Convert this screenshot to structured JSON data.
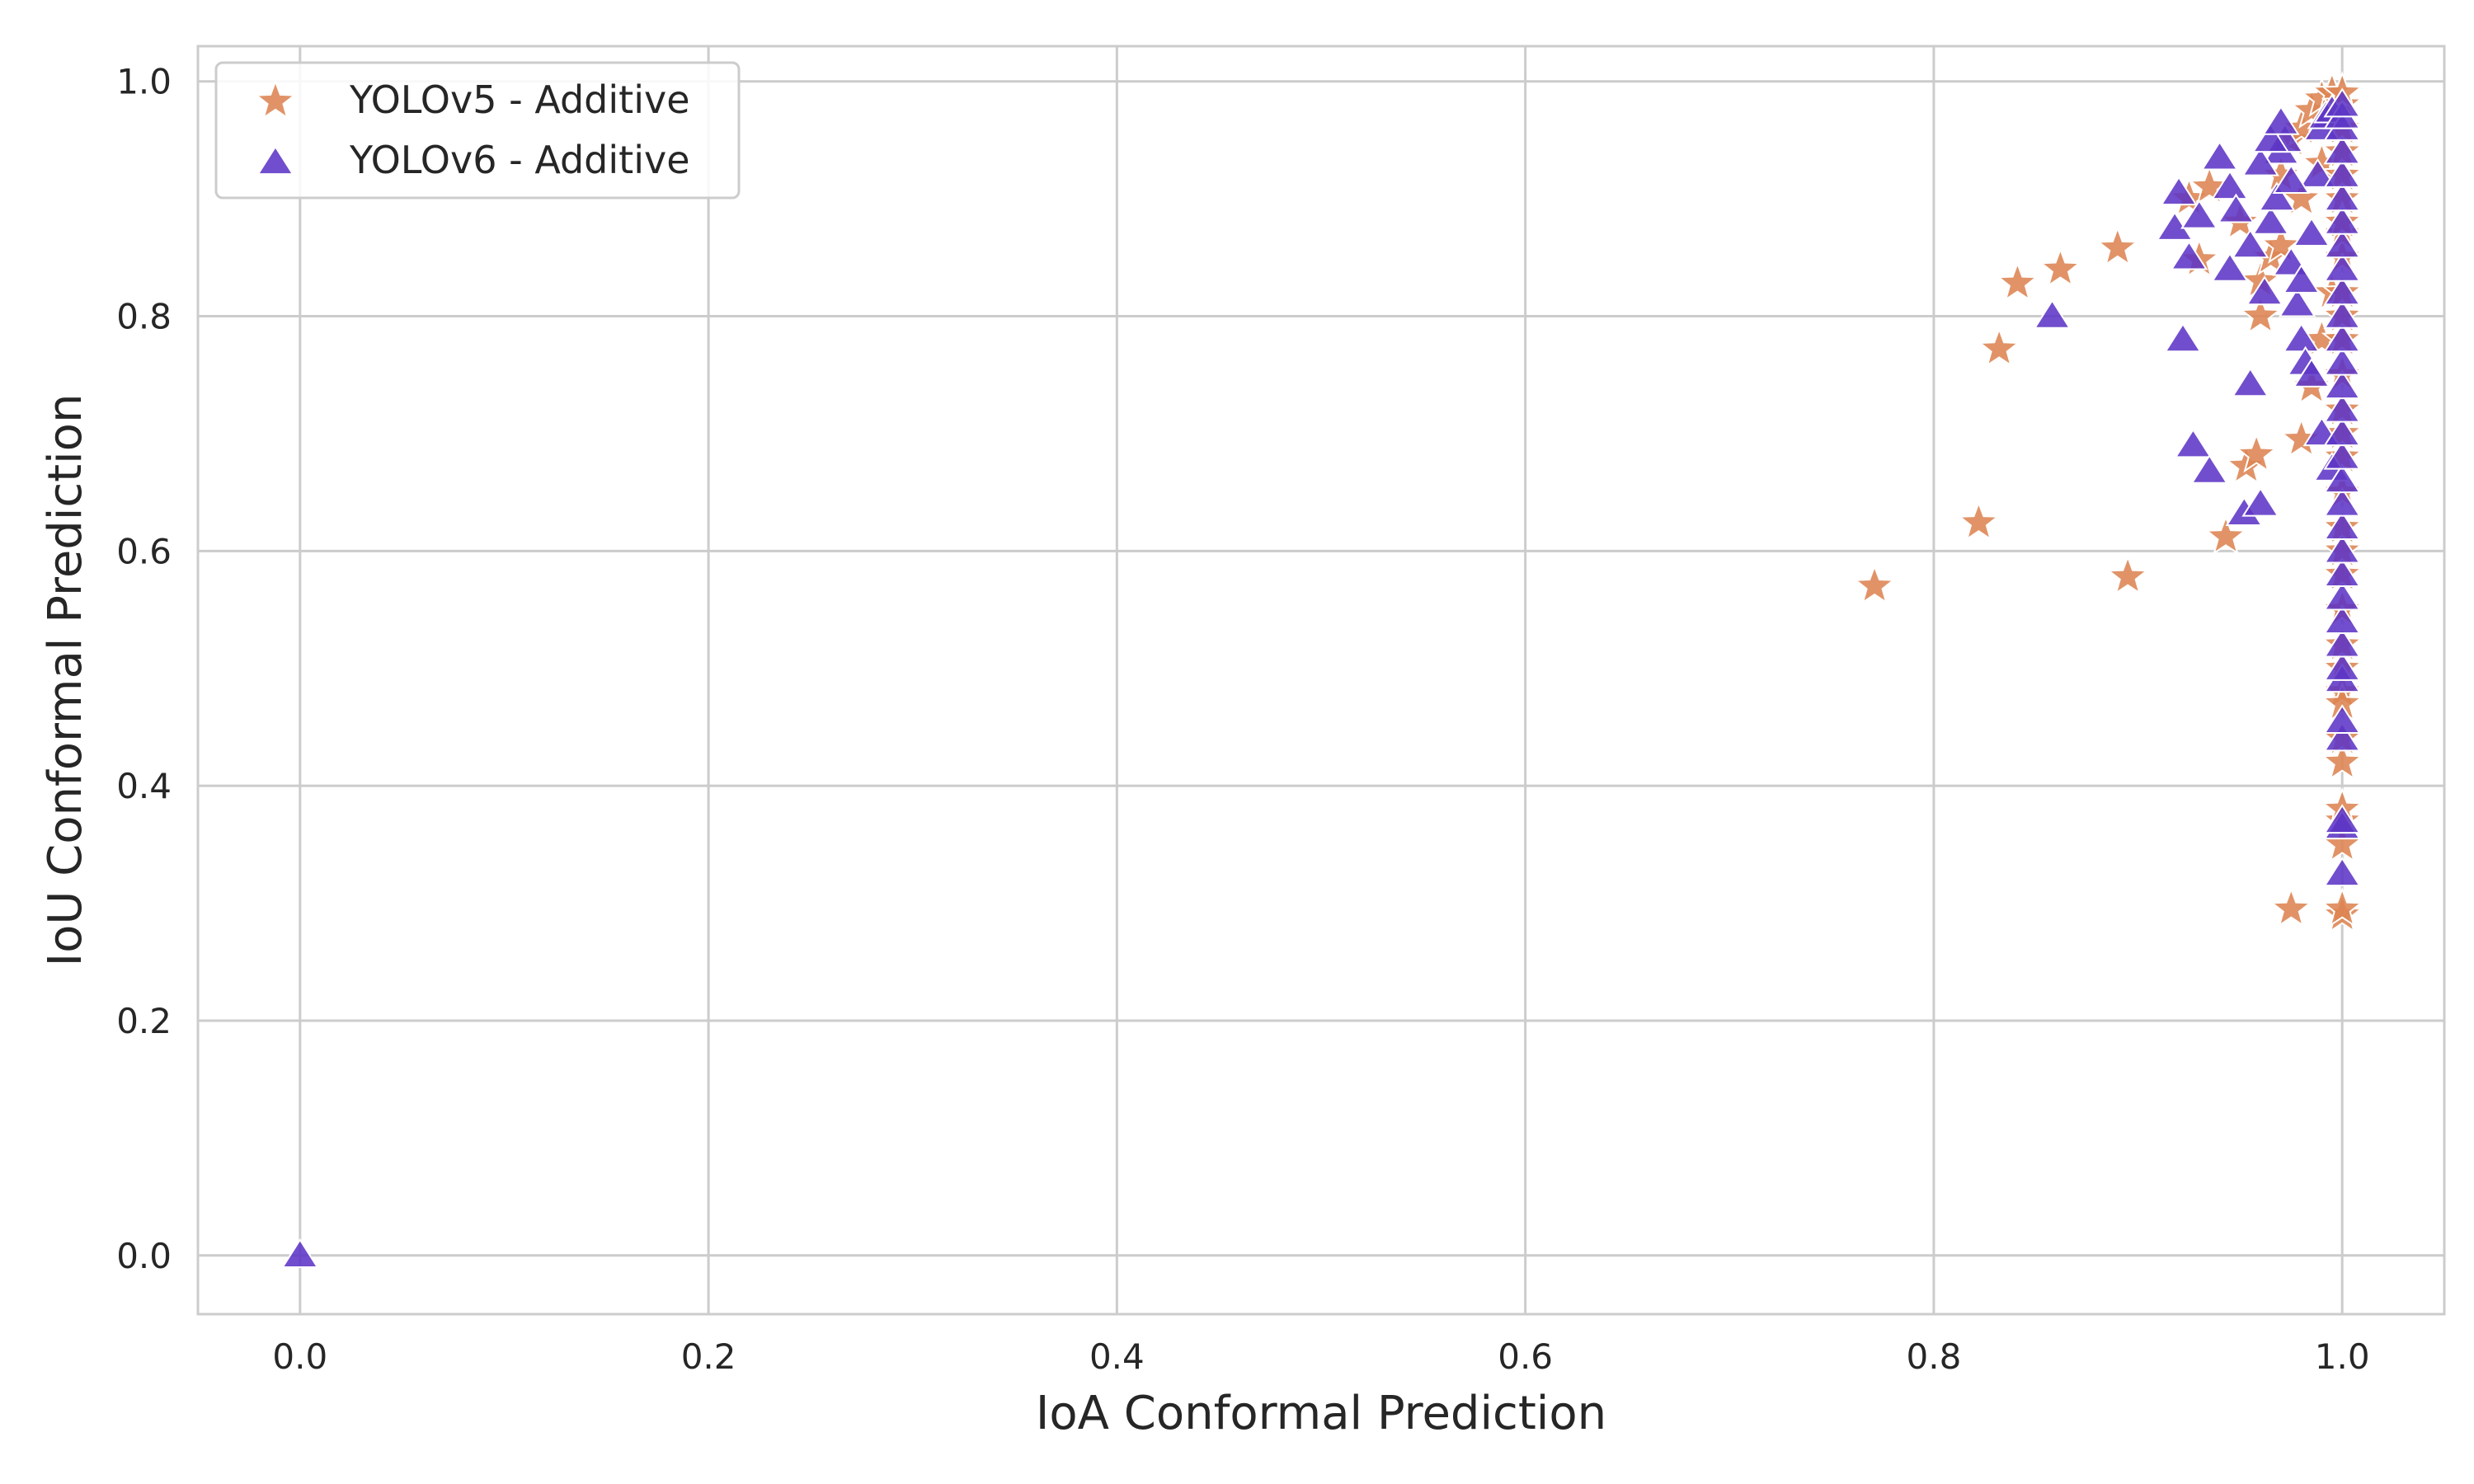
{
  "chart_data": {
    "type": "scatter",
    "xlabel": "IoA Conformal Prediction",
    "ylabel": "IoU Conformal Prediction",
    "xlim": [
      -0.05,
      1.05
    ],
    "ylim": [
      -0.05,
      1.03
    ],
    "x_ticks": [
      "0.0",
      "0.2",
      "0.4",
      "0.6",
      "0.8",
      "1.0"
    ],
    "y_ticks": [
      "0.0",
      "0.2",
      "0.4",
      "0.6",
      "0.8",
      "1.0"
    ],
    "grid": true,
    "legend_position": "top-left",
    "series": [
      {
        "name": "YOLOv5 - Additive",
        "marker": "star",
        "color": "#dd8452",
        "x": [
          0.771,
          0.822,
          0.832,
          0.841,
          0.862,
          0.89,
          0.895,
          0.925,
          0.93,
          0.935,
          0.943,
          0.953,
          0.958,
          0.96,
          0.965,
          0.97,
          0.975,
          0.98,
          0.985,
          0.99,
          0.995,
          0.975,
          0.98,
          0.985,
          0.99,
          0.995,
          0.95,
          0.96,
          0.97,
          0.98,
          0.99,
          1.0,
          1.0,
          1.0,
          1.0,
          1.0,
          1.0,
          1.0,
          1.0,
          1.0,
          1.0,
          1.0,
          1.0,
          1.0,
          1.0,
          1.0,
          1.0,
          1.0,
          1.0,
          1.0,
          1.0,
          1.0,
          1.0,
          1.0,
          1.0,
          1.0,
          1.0,
          1.0,
          1.0,
          1.0,
          1.0,
          1.0,
          1.0,
          1.0
        ],
        "y": [
          0.57,
          0.624,
          0.772,
          0.828,
          0.84,
          0.858,
          0.578,
          0.9,
          0.848,
          0.91,
          0.612,
          0.672,
          0.682,
          0.83,
          0.85,
          0.92,
          0.95,
          0.96,
          0.975,
          0.985,
          0.99,
          0.295,
          0.695,
          0.74,
          0.78,
          0.82,
          0.88,
          0.8,
          0.86,
          0.9,
          0.93,
          0.29,
          0.295,
          0.35,
          0.37,
          0.38,
          0.42,
          0.44,
          0.48,
          0.5,
          0.52,
          0.55,
          0.58,
          0.6,
          0.62,
          0.65,
          0.68,
          0.7,
          0.72,
          0.75,
          0.78,
          0.8,
          0.82,
          0.85,
          0.87,
          0.9,
          0.92,
          0.94,
          0.96,
          0.98,
          0.99,
          0.55,
          0.47,
          0.88
        ]
      },
      {
        "name": "YOLOv6 - Additive",
        "marker": "triangle",
        "color": "#5d36c6",
        "x": [
          0.0,
          0.858,
          0.918,
          0.92,
          0.922,
          0.927,
          0.935,
          0.94,
          0.945,
          0.948,
          0.952,
          0.955,
          0.96,
          0.962,
          0.965,
          0.968,
          0.97,
          0.972,
          0.975,
          0.978,
          0.98,
          0.982,
          0.985,
          0.988,
          0.99,
          0.992,
          0.995,
          0.955,
          0.96,
          0.965,
          0.97,
          0.975,
          0.98,
          0.985,
          0.99,
          0.995,
          1.0,
          1.0,
          1.0,
          1.0,
          1.0,
          1.0,
          1.0,
          1.0,
          1.0,
          1.0,
          1.0,
          1.0,
          1.0,
          1.0,
          1.0,
          1.0,
          1.0,
          1.0,
          1.0,
          1.0,
          1.0,
          1.0,
          1.0,
          1.0,
          1.0,
          1.0,
          1.0,
          1.0,
          1.0,
          1.0,
          1.0,
          1.0,
          0.945,
          0.93,
          0.925
        ],
        "y": [
          0.0,
          0.8,
          0.875,
          0.905,
          0.78,
          0.69,
          0.668,
          0.935,
          0.91,
          0.89,
          0.632,
          0.742,
          0.64,
          0.82,
          0.88,
          0.9,
          0.94,
          0.95,
          0.845,
          0.81,
          0.78,
          0.76,
          0.87,
          0.92,
          0.96,
          0.97,
          0.975,
          0.86,
          0.93,
          0.95,
          0.965,
          0.915,
          0.83,
          0.75,
          0.7,
          0.67,
          0.325,
          0.365,
          0.37,
          0.44,
          0.455,
          0.49,
          0.5,
          0.52,
          0.54,
          0.56,
          0.58,
          0.6,
          0.62,
          0.64,
          0.66,
          0.68,
          0.7,
          0.72,
          0.74,
          0.76,
          0.78,
          0.8,
          0.82,
          0.84,
          0.86,
          0.88,
          0.9,
          0.92,
          0.94,
          0.96,
          0.97,
          0.98,
          0.84,
          0.885,
          0.85
        ]
      }
    ]
  }
}
